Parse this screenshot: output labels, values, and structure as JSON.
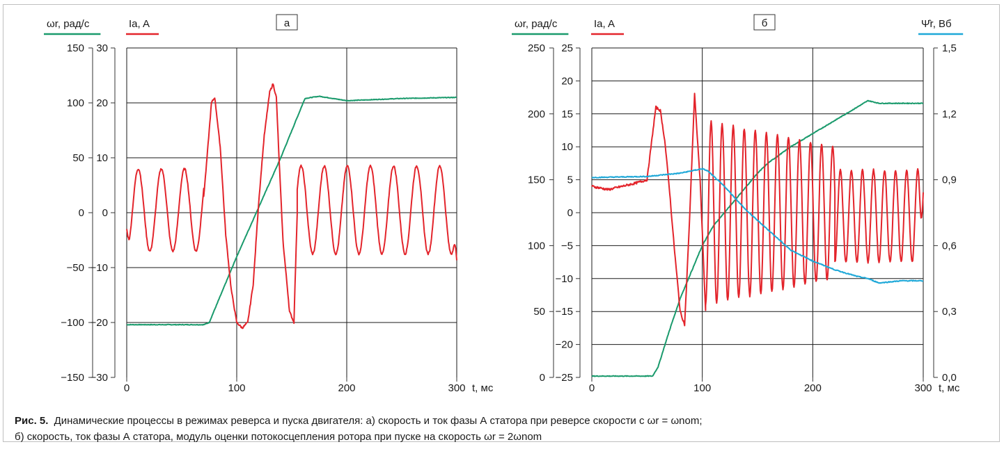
{
  "colors": {
    "speed": "#1a9a6c",
    "current": "#e3242b",
    "flux": "#1ea8d8",
    "grid": "#1a1a1a",
    "axis": "#333333"
  },
  "chart_data": [
    {
      "type": "line",
      "panel_label": "а",
      "xlabel": "t, мс",
      "xlim": [
        0,
        300
      ],
      "x_ticks": [
        "0",
        "100",
        "200",
        "300"
      ],
      "grid": true,
      "axes": [
        {
          "side": "left-outer",
          "label": "ωr, рад/с",
          "color": "#1a9a6c",
          "ylim": [
            -150,
            150
          ],
          "ticks": [
            "−150",
            "−100",
            "−50",
            "0",
            "50",
            "100",
            "150"
          ]
        },
        {
          "side": "left-inner",
          "label": "Ia, A",
          "color": "#e3242b",
          "ylim": [
            -30,
            30
          ],
          "ticks": [
            "−30",
            "−20",
            "−10",
            "0",
            "10",
            "20",
            "30"
          ]
        }
      ],
      "series": [
        {
          "name": "ωr, рад/с",
          "axis": 0,
          "color": "#1a9a6c",
          "x": [
            0,
            70,
            75,
            100,
            140,
            162,
            175,
            200,
            250,
            300
          ],
          "y": [
            -102,
            -102,
            -100,
            -40,
            50,
            104,
            106,
            102,
            104,
            105
          ]
        },
        {
          "name": "Ia, A",
          "axis": 1,
          "color": "#e3242b",
          "segments": [
            {
              "x": [
                0,
                70
              ],
              "period": 21,
              "amp": 7.5,
              "offset": 0.5,
              "phase": -1.57,
              "start_value": -3
            },
            {
              "x": [
                70,
                73,
                77,
                80,
                85,
                90,
                95,
                100,
                105,
                110,
                115,
                120,
                125,
                130,
                133,
                136,
                138,
                142,
                148,
                152,
                155
              ],
              "y": [
                3,
                10,
                20,
                21,
                12,
                -4,
                -14,
                -20,
                -21,
                -20,
                -13,
                2,
                14,
                22,
                23.5,
                21,
                12,
                -5,
                -18,
                -20,
                0
              ]
            },
            {
              "x": [
                155,
                300
              ],
              "period": 21,
              "amp": 8,
              "offset": 0.5,
              "phase": 0.5,
              "end_value": -8.5
            }
          ]
        }
      ]
    },
    {
      "type": "line",
      "panel_label": "б",
      "xlabel": "t, мс",
      "xlim": [
        0,
        300
      ],
      "x_ticks": [
        "0",
        "100",
        "200",
        "300"
      ],
      "grid": true,
      "axes": [
        {
          "side": "left-outer",
          "label": "ωr, рад/с",
          "color": "#1a9a6c",
          "ylim": [
            0,
            250
          ],
          "ticks": [
            "0",
            "50",
            "100",
            "150",
            "200",
            "250"
          ]
        },
        {
          "side": "left-inner",
          "label": "Ia, A",
          "color": "#e3242b",
          "ylim": [
            -25,
            25
          ],
          "ticks": [
            "−25",
            "−20",
            "−15",
            "−10",
            "−5",
            "0",
            "5",
            "10",
            "15",
            "20",
            "25"
          ]
        },
        {
          "side": "right",
          "label": "Ψ̂r, Вб",
          "color": "#1ea8d8",
          "ylim": [
            0,
            1.5
          ],
          "ticks": [
            "0,0",
            "0,3",
            "0,6",
            "0,9",
            "1,2",
            "1,5"
          ]
        }
      ],
      "series": [
        {
          "name": "ωr, рад/с",
          "axis": 0,
          "color": "#1a9a6c",
          "x": [
            0,
            55,
            60,
            70,
            80,
            90,
            100,
            110,
            120,
            130,
            140,
            150,
            160,
            180,
            200,
            220,
            240,
            250,
            260,
            300
          ],
          "y": [
            1,
            1,
            8,
            35,
            60,
            80,
            100,
            115,
            125,
            135,
            145,
            155,
            163,
            175,
            185,
            195,
            205,
            210,
            208,
            208
          ]
        },
        {
          "name": "Ia, A",
          "axis": 1,
          "color": "#e3242b",
          "segments": [
            {
              "x": [
                0,
                15,
                40,
                50,
                55,
                58,
                62,
                66,
                70,
                75,
                80,
                84,
                88,
                93,
                98,
                103
              ],
              "y": [
                4,
                3.5,
                4.5,
                5,
                12,
                16,
                15.5,
                11,
                4,
                -6,
                -15,
                -17,
                -3,
                18,
                5,
                -15
              ]
            },
            {
              "x": [
                103,
                220
              ],
              "period": 10,
              "amp": 14,
              "amp_end": 10,
              "offset": 0,
              "phase": -1.57
            },
            {
              "x": [
                220,
                300
              ],
              "period": 10,
              "amp": 7,
              "offset": -0.5,
              "phase": -1.57,
              "end_value": 3
            }
          ]
        },
        {
          "name": "Ψ̂r, Вб",
          "axis": 2,
          "color": "#1ea8d8",
          "x": [
            0,
            50,
            80,
            100,
            105,
            120,
            140,
            160,
            180,
            200,
            220,
            240,
            250,
            260,
            280,
            300
          ],
          "y": [
            0.91,
            0.915,
            0.93,
            0.95,
            0.94,
            0.87,
            0.76,
            0.67,
            0.58,
            0.53,
            0.49,
            0.46,
            0.45,
            0.43,
            0.44,
            0.44
          ]
        }
      ]
    }
  ],
  "caption": {
    "figure_num": "Рис. 5.",
    "line1": "Динамические процессы в режимах реверса и пуска двигателя: а) скорость и ток фазы А статора при реверсе скорости с ωr = ωnom;",
    "line2": "б) скорость, ток фазы А статора, модуль оценки потокосцепления ротора при пуске на скорость ωr = 2ωnom"
  }
}
